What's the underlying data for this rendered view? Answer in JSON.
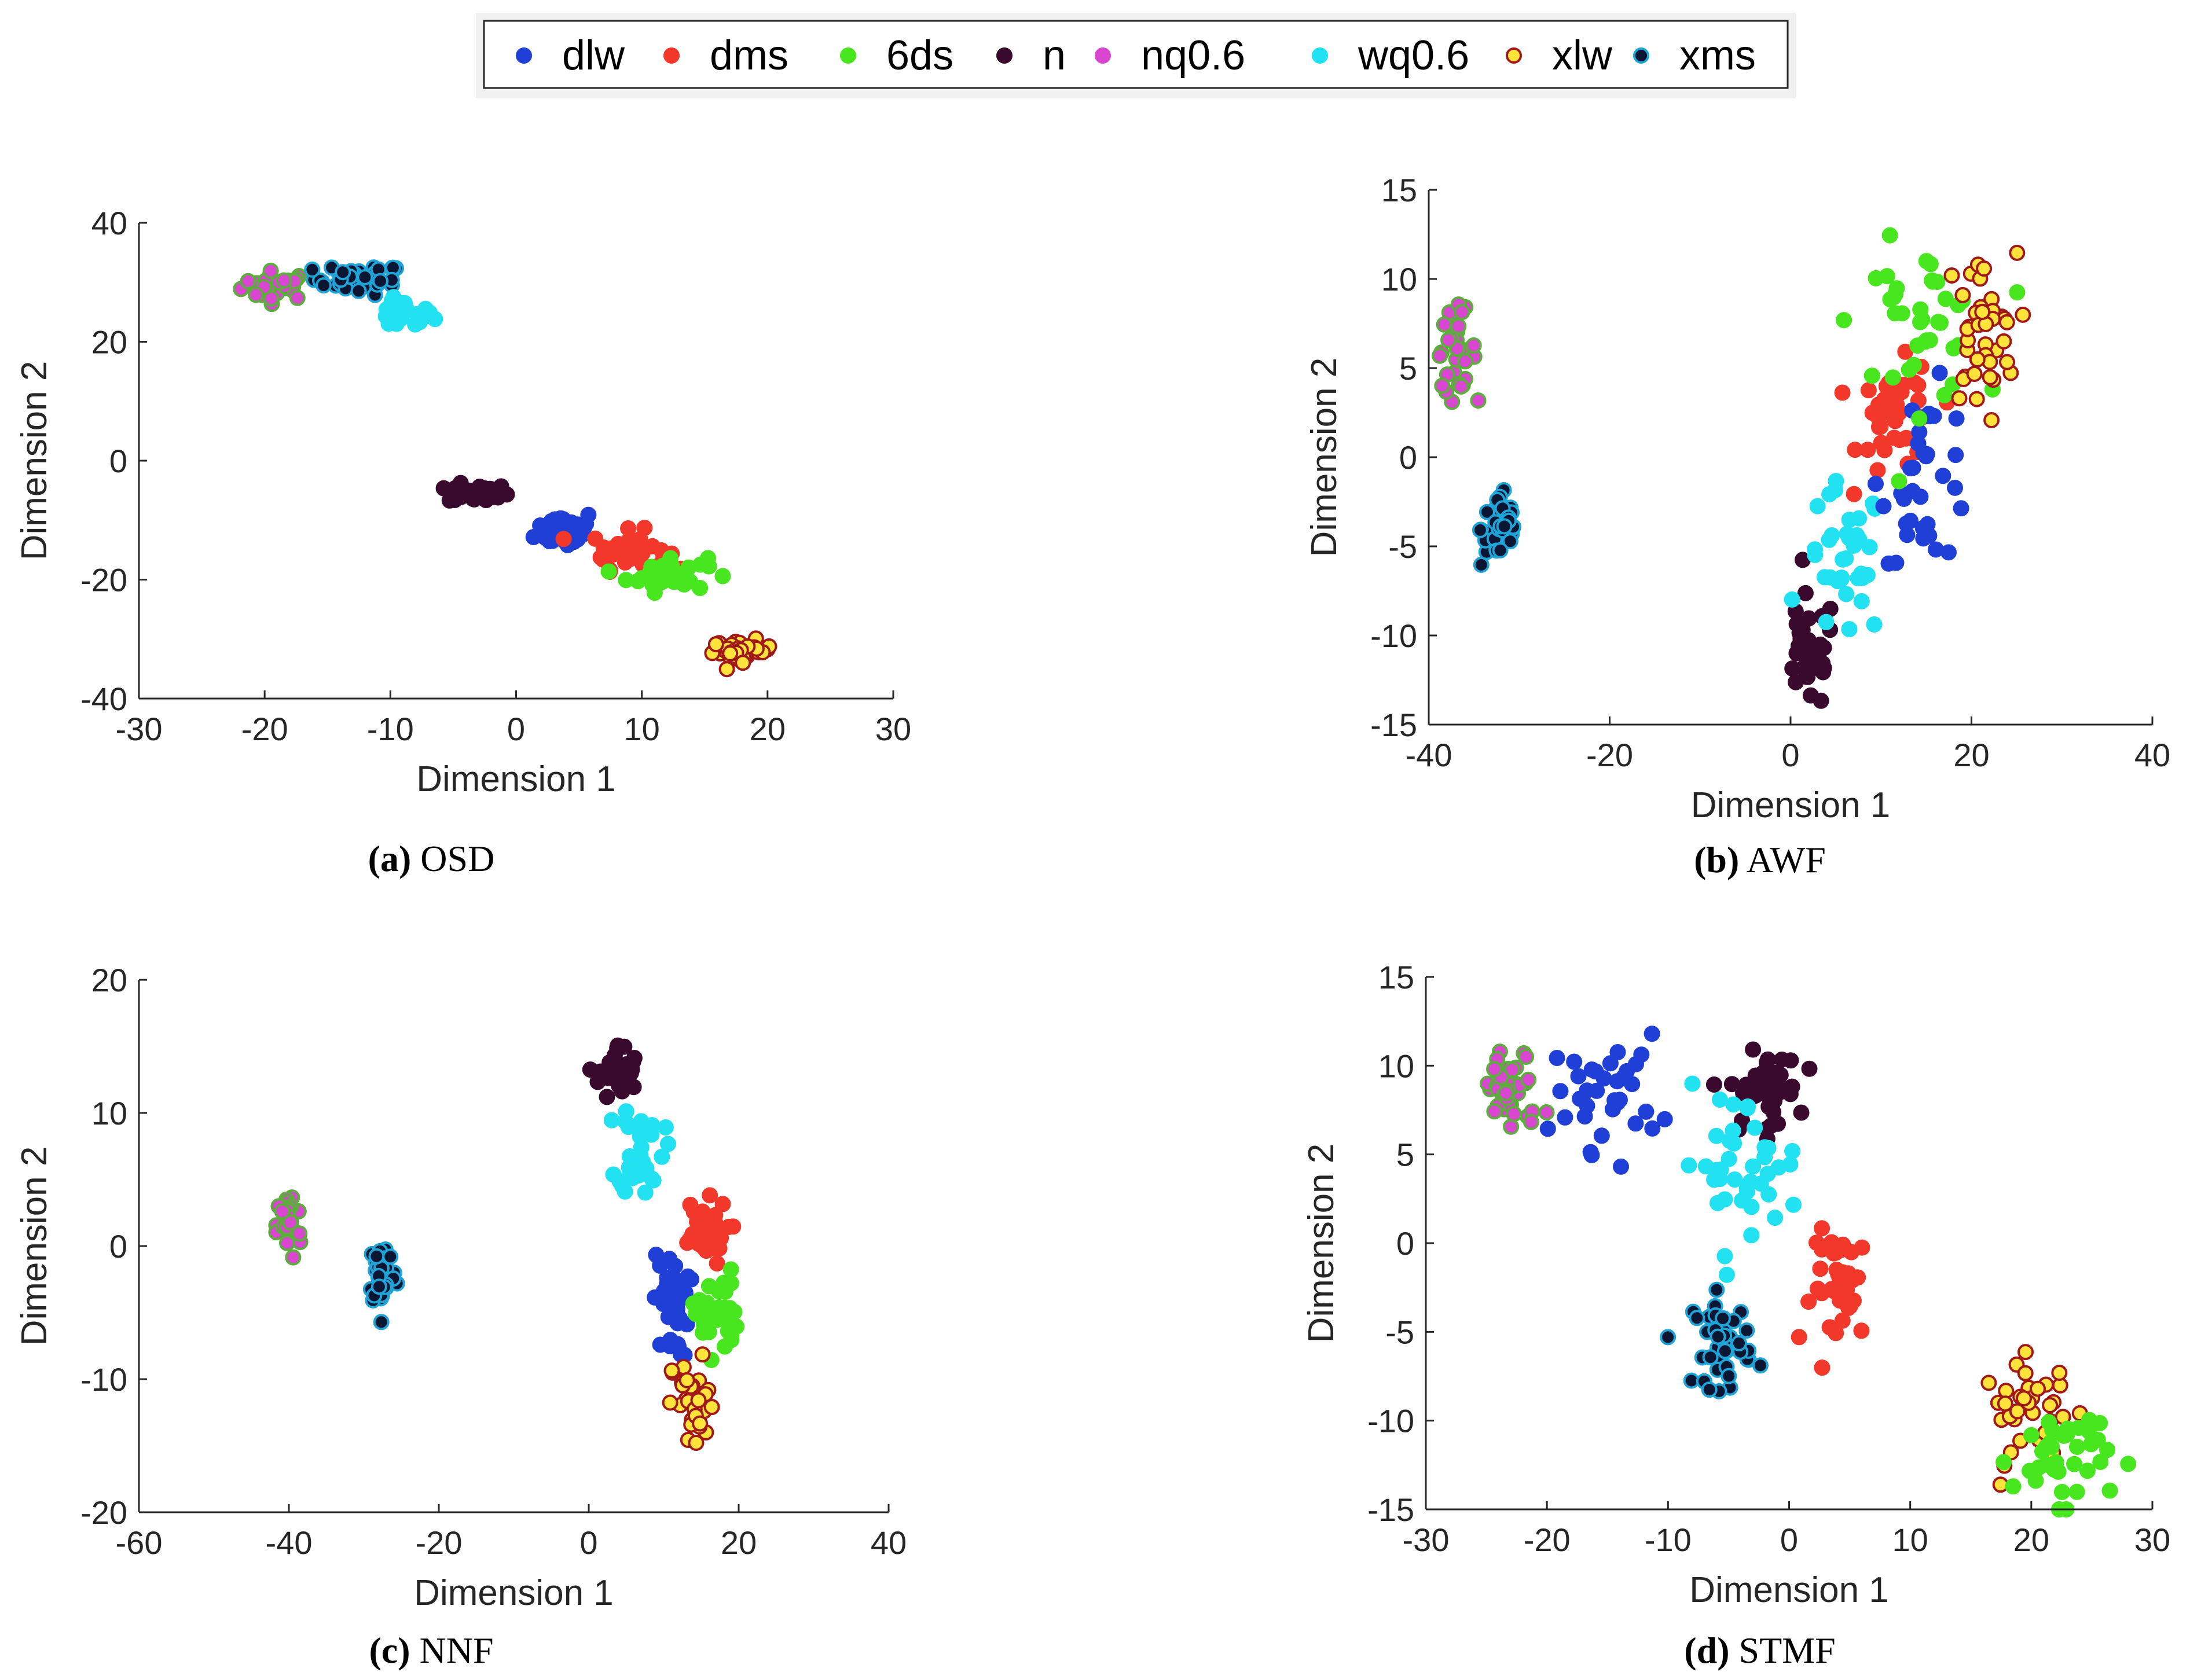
{
  "legend": {
    "entries": [
      {
        "key": "dlw",
        "label": "dlw"
      },
      {
        "key": "dms",
        "label": "dms"
      },
      {
        "key": "6ds",
        "label": "6ds"
      },
      {
        "key": "n",
        "label": "n"
      },
      {
        "key": "nq06",
        "label": "nq0.6"
      },
      {
        "key": "wq06",
        "label": "wq0.6"
      },
      {
        "key": "xlw",
        "label": "xlw"
      },
      {
        "key": "xms",
        "label": "xms"
      }
    ]
  },
  "colors": {
    "dlw": {
      "fill": "#1f3fd6",
      "edge": "#1f3fd6"
    },
    "dms": {
      "fill": "#f2382a",
      "edge": "#f2382a"
    },
    "6ds": {
      "fill": "#48e61e",
      "edge": "#48e61e"
    },
    "n": {
      "fill": "#3a0a2e",
      "edge": "#3a0a2e"
    },
    "nq06": {
      "fill": "#d946d0",
      "edge": "#d946d0"
    },
    "wq06": {
      "fill": "#22e1f0",
      "edge": "#22e1f0"
    },
    "xlw": {
      "fill": "#ffe23a",
      "edge": "#a01818"
    },
    "xms": {
      "fill": "#0b1633",
      "edge": "#1fa4d8"
    },
    "green_edge_on_nq06": "#5cae3c"
  },
  "chart_data": [
    {
      "type": "scatter",
      "caption_letter": "(a)",
      "caption_text": " OSD",
      "xlabel": "Dimension 1",
      "ylabel": "Dimension 2",
      "xlim": [
        -30,
        30
      ],
      "ylim": [
        -40,
        40
      ],
      "xticks": [
        "-30",
        "-20",
        "-10",
        "0",
        "10",
        "20",
        "30"
      ],
      "yticks": [
        "40",
        "20",
        "0",
        "-20",
        "-40"
      ],
      "series": [
        {
          "name": "nq0.6",
          "key": "nq06",
          "cx": -19,
          "cy": 29.5,
          "sx": 1.4,
          "sy": 1.2,
          "n": 30
        },
        {
          "name": "xms",
          "key": "xms",
          "cx": -12.5,
          "cy": 30.5,
          "sx": 1.8,
          "sy": 1.3,
          "n": 35
        },
        {
          "name": "wq0.6",
          "key": "wq06",
          "cx": -9,
          "cy": 24.5,
          "sx": 1.2,
          "sy": 1.2,
          "n": 30
        },
        {
          "name": "n",
          "key": "n",
          "cx": -3,
          "cy": -5.5,
          "sx": 1.2,
          "sy": 0.8,
          "n": 35
        },
        {
          "name": "dlw",
          "key": "dlw",
          "cx": 4,
          "cy": -11.5,
          "sx": 1.2,
          "sy": 1.6,
          "n": 40
        },
        {
          "name": "dms",
          "key": "dms",
          "cx": 9,
          "cy": -15,
          "sx": 1.5,
          "sy": 1.6,
          "n": 40
        },
        {
          "name": "6ds",
          "key": "6ds",
          "cx": 12,
          "cy": -19,
          "sx": 1.6,
          "sy": 1.5,
          "n": 35
        },
        {
          "name": "xlw",
          "key": "xlw",
          "cx": 18,
          "cy": -32,
          "sx": 1.2,
          "sy": 0.9,
          "n": 40
        }
      ]
    },
    {
      "type": "scatter",
      "caption_letter": "(b)",
      "caption_text": " AWF",
      "xlabel": "Dimension 1",
      "ylabel": "Dimension 2",
      "xlim": [
        -40,
        40
      ],
      "ylim": [
        -15,
        15
      ],
      "xticks": [
        "-40",
        "-20",
        "0",
        "20",
        "40"
      ],
      "yticks": [
        "15",
        "10",
        "5",
        "0",
        "-5",
        "-10",
        "-15"
      ],
      "series": [
        {
          "name": "nq0.6",
          "key": "nq06",
          "cx": -37,
          "cy": 6,
          "sx": 1.1,
          "sy": 1.1,
          "n": 35
        },
        {
          "name": "xms",
          "key": "xms",
          "cx": -32,
          "cy": -4,
          "sx": 1.1,
          "sy": 1.1,
          "n": 40
        },
        {
          "name": "n",
          "key": "n",
          "cx": 2,
          "cy": -11,
          "sx": 1.5,
          "sy": 1.6,
          "n": 35
        },
        {
          "name": "wq0.6",
          "key": "wq06",
          "cx": 6,
          "cy": -6,
          "sx": 2.2,
          "sy": 2.2,
          "n": 35
        },
        {
          "name": "dms",
          "key": "dms",
          "cx": 12,
          "cy": 2,
          "sx": 2.2,
          "sy": 1.6,
          "n": 40
        },
        {
          "name": "dlw",
          "key": "dlw",
          "cx": 15,
          "cy": -1,
          "sx": 2.5,
          "sy": 2.4,
          "n": 35
        },
        {
          "name": "6ds",
          "key": "6ds",
          "cx": 14,
          "cy": 7.5,
          "sx": 3.5,
          "sy": 2.2,
          "n": 40
        },
        {
          "name": "xlw",
          "key": "xlw",
          "cx": 21,
          "cy": 7,
          "sx": 2.0,
          "sy": 2.2,
          "n": 40
        }
      ]
    },
    {
      "type": "scatter",
      "caption_letter": "(c)",
      "caption_text": " NNF",
      "xlabel": "Dimension 1",
      "ylabel": "Dimension 2",
      "xlim": [
        -60,
        40
      ],
      "ylim": [
        -20,
        20
      ],
      "xticks": [
        "-60",
        "-40",
        "-20",
        "0",
        "20",
        "40"
      ],
      "yticks": [
        "20",
        "10",
        "0",
        "-10",
        "-20"
      ],
      "series": [
        {
          "name": "nq0.6",
          "key": "nq06",
          "cx": -40,
          "cy": 1.5,
          "sx": 0.8,
          "sy": 1.3,
          "n": 35
        },
        {
          "name": "xms",
          "key": "xms",
          "cx": -27.5,
          "cy": -2,
          "sx": 0.9,
          "sy": 1.3,
          "n": 40
        },
        {
          "name": "n",
          "key": "n",
          "cx": 4,
          "cy": 13,
          "sx": 1.3,
          "sy": 1.1,
          "n": 35
        },
        {
          "name": "wq0.6",
          "key": "wq06",
          "cx": 7,
          "cy": 7.5,
          "sx": 1.5,
          "sy": 1.8,
          "n": 35
        },
        {
          "name": "dms",
          "key": "dms",
          "cx": 15,
          "cy": 1,
          "sx": 1.8,
          "sy": 1.2,
          "n": 40
        },
        {
          "name": "dlw",
          "key": "dlw",
          "cx": 11,
          "cy": -4.5,
          "sx": 1.2,
          "sy": 2.0,
          "n": 35
        },
        {
          "name": "6ds",
          "key": "6ds",
          "cx": 17,
          "cy": -5,
          "sx": 1.4,
          "sy": 1.6,
          "n": 35
        },
        {
          "name": "xlw",
          "key": "xlw",
          "cx": 14,
          "cy": -12,
          "sx": 1.4,
          "sy": 1.8,
          "n": 35
        }
      ]
    },
    {
      "type": "scatter",
      "caption_letter": "(d)",
      "caption_text": " STMF",
      "xlabel": "Dimension 1",
      "ylabel": "Dimension 2",
      "xlim": [
        -30,
        30
      ],
      "ylim": [
        -15,
        15
      ],
      "xticks": [
        "-30",
        "-20",
        "-10",
        "0",
        "10",
        "20",
        "30"
      ],
      "yticks": [
        "15",
        "10",
        "5",
        "0",
        "-5",
        "-10",
        "-15"
      ],
      "series": [
        {
          "name": "nq0.6",
          "key": "nq06",
          "cx": -23,
          "cy": 8.5,
          "sx": 1.3,
          "sy": 1.2,
          "n": 40
        },
        {
          "name": "dlw",
          "key": "dlw",
          "cx": -15,
          "cy": 8.5,
          "sx": 2.2,
          "sy": 1.6,
          "n": 35
        },
        {
          "name": "n",
          "key": "n",
          "cx": -2,
          "cy": 8.5,
          "sx": 1.4,
          "sy": 1.1,
          "n": 40
        },
        {
          "name": "wq0.6",
          "key": "wq06",
          "cx": -4,
          "cy": 4.5,
          "sx": 2.5,
          "sy": 2.0,
          "n": 40
        },
        {
          "name": "dms",
          "key": "dms",
          "cx": 4.5,
          "cy": -2.5,
          "sx": 1.3,
          "sy": 1.6,
          "n": 40
        },
        {
          "name": "xms",
          "key": "xms",
          "cx": -5.5,
          "cy": -5.5,
          "sx": 1.2,
          "sy": 1.3,
          "n": 40
        },
        {
          "name": "xlw",
          "key": "xlw",
          "cx": 20,
          "cy": -9.5,
          "sx": 2.0,
          "sy": 1.4,
          "n": 35
        },
        {
          "name": "6ds",
          "key": "6ds",
          "cx": 22.5,
          "cy": -12,
          "sx": 2.0,
          "sy": 1.4,
          "n": 40
        }
      ]
    }
  ]
}
